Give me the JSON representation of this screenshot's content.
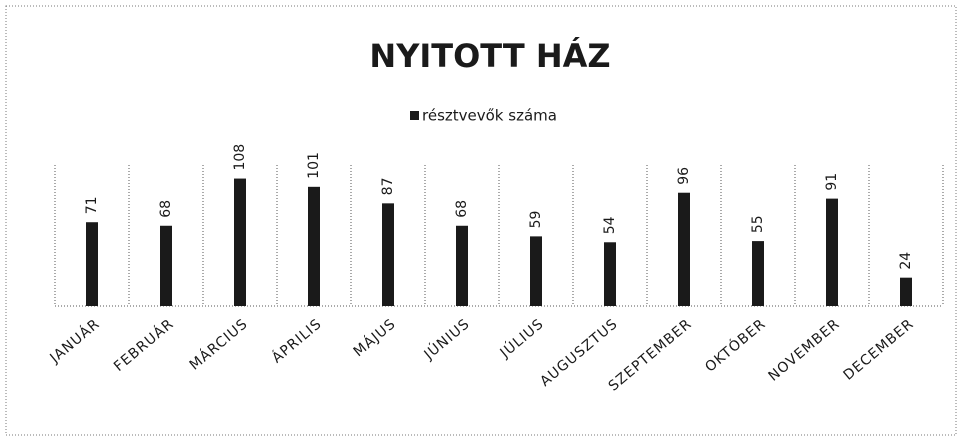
{
  "chart_data": {
    "type": "bar",
    "title": "NYITOTT HÁZ",
    "legend": "résztvevők száma",
    "series": [
      {
        "name": "résztvevők száma",
        "color": "#1a1a1a",
        "values": [
          71,
          68,
          108,
          101,
          87,
          68,
          59,
          54,
          96,
          55,
          91,
          24
        ]
      }
    ],
    "categories": [
      "JANUÁR",
      "FEBRUÁR",
      "MÁRCIUS",
      "ÁPRILIS",
      "MÁJUS",
      "JÚNIUS",
      "JÚLIUS",
      "AUGUSZTUS",
      "SZEPTEMBER",
      "OKTÓBER",
      "NOVEMBER",
      "DECEMBER"
    ],
    "grid": true
  }
}
